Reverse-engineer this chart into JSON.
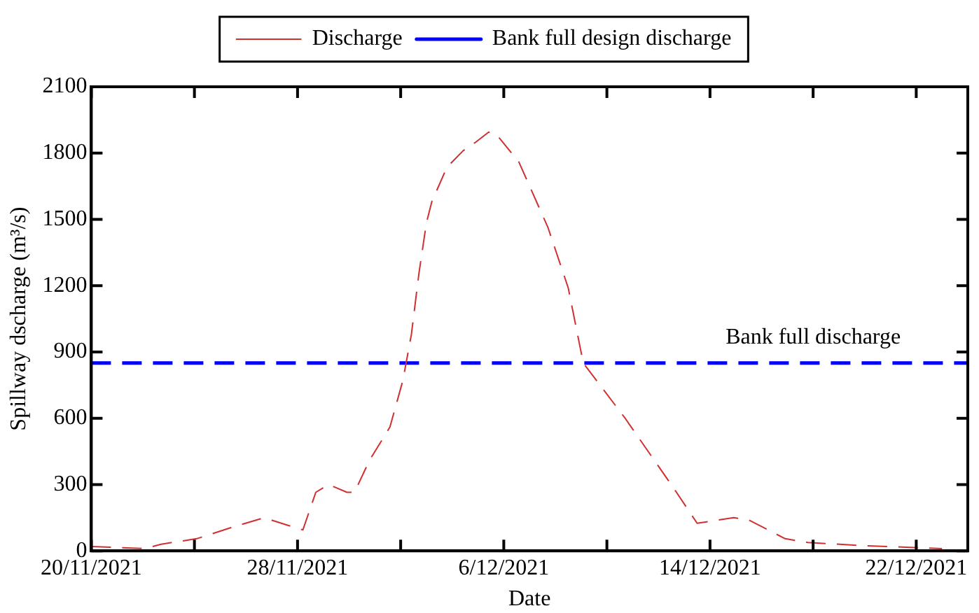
{
  "chart_data": {
    "type": "line",
    "xlabel": "Date",
    "ylabel": "Spillway dscharge (m³/s)",
    "xlim": [
      "2021-11-20",
      "2021-12-24"
    ],
    "xticks": [
      {
        "value": "2021-11-20",
        "label": "20/11/2021"
      },
      {
        "value": "2021-11-24",
        "label": null
      },
      {
        "value": "2021-11-28",
        "label": "28/11/2021"
      },
      {
        "value": "2021-12-02",
        "label": null
      },
      {
        "value": "2021-12-06",
        "label": "6/12/2021"
      },
      {
        "value": "2021-12-10",
        "label": null
      },
      {
        "value": "2021-12-14",
        "label": "14/12/2021"
      },
      {
        "value": "2021-12-18",
        "label": null
      },
      {
        "value": "2021-12-22",
        "label": "22/12/2021"
      }
    ],
    "ylim": [
      0,
      2100
    ],
    "yticks": [
      0,
      300,
      600,
      900,
      1200,
      1500,
      1800,
      2100
    ],
    "grid": false,
    "legend": "top",
    "marker": "none",
    "series": [
      {
        "name": "Discharge",
        "color": "#d03030",
        "line_style": "dashed",
        "x": [
          "2021-11-20T00:00",
          "2021-11-22T02:00",
          "2021-11-22T17:00",
          "2021-11-24T02:00",
          "2021-11-25T10:00",
          "2021-11-26T17:00",
          "2021-11-27T12:00",
          "2021-11-28T05:00",
          "2021-11-28T17:00",
          "2021-11-29T05:00",
          "2021-11-29T22:00",
          "2021-11-30T05:00",
          "2021-11-30T19:00",
          "2021-12-01T14:00",
          "2021-12-02T02:00",
          "2021-12-02T10:00",
          "2021-12-02T17:00",
          "2021-12-03T00:00",
          "2021-12-03T05:00",
          "2021-12-03T19:00",
          "2021-12-04T10:00",
          "2021-12-04T22:00",
          "2021-12-05T10:00",
          "2021-12-05T17:00",
          "2021-12-06T14:00",
          "2021-12-07T17:00",
          "2021-12-08T12:00",
          "2021-12-09T02:00",
          "2021-12-10T17:00",
          "2021-12-12T14:00",
          "2021-12-13T12:00",
          "2021-12-14T22:00",
          "2021-12-15T12:00",
          "2021-12-16T22:00",
          "2021-12-17T19:00",
          "2021-12-19T17:00",
          "2021-12-21T22:00",
          "2021-12-23T00:00"
        ],
        "values": [
          20,
          10,
          30,
          55,
          105,
          150,
          120,
          95,
          265,
          300,
          265,
          265,
          410,
          560,
          770,
          980,
          1255,
          1485,
          1580,
          1735,
          1810,
          1850,
          1895,
          1885,
          1760,
          1465,
          1190,
          850,
          600,
          285,
          125,
          150,
          140,
          55,
          38,
          25,
          15,
          10
        ]
      },
      {
        "name": "Bank full design discharge",
        "color": "#0000ff",
        "line_style": "dashed",
        "x": [
          "2021-11-20",
          "2021-12-24"
        ],
        "values": [
          850,
          850
        ]
      }
    ],
    "annotations": [
      {
        "text": "Bank full discharge",
        "x": "2021-12-18",
        "y": 850
      }
    ]
  }
}
